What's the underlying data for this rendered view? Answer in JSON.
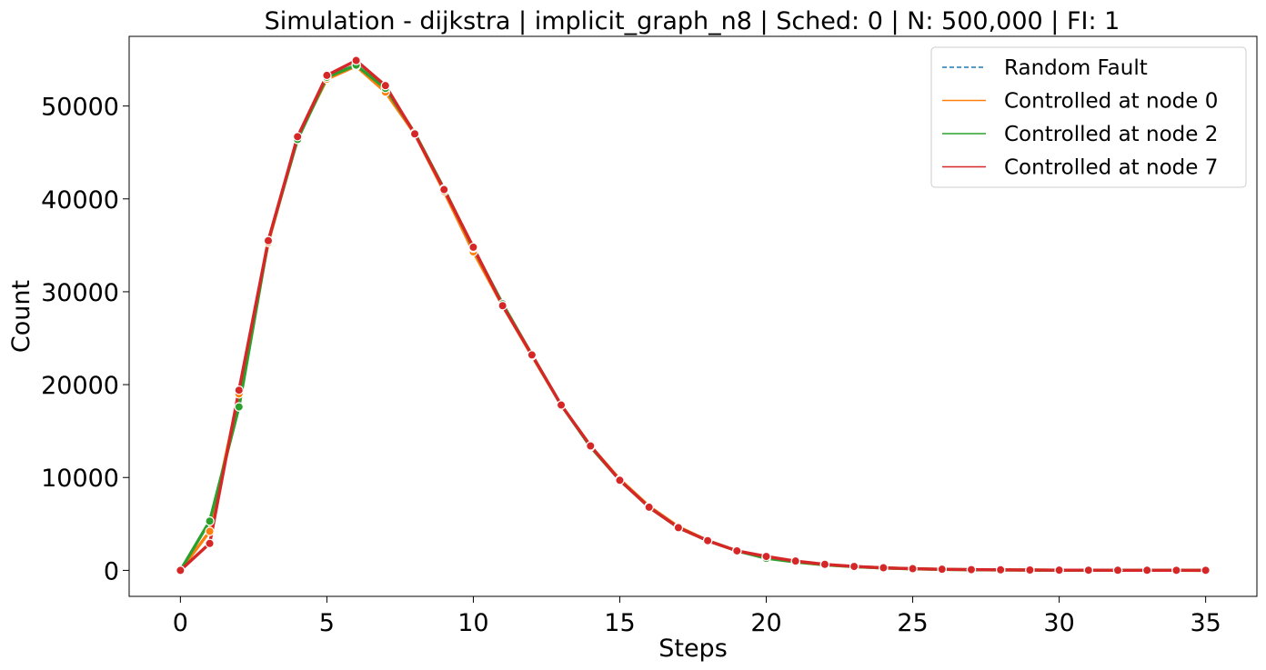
{
  "chart_data": {
    "type": "line",
    "title": "Simulation - dijkstra | implicit_graph_n8 | Sched: 0 | N: 500,000 | FI: 1",
    "xlabel": "Steps",
    "ylabel": "Count",
    "xlim": [
      -1.75,
      36.75
    ],
    "ylim": [
      -2800,
      57500
    ],
    "xticks": [
      0,
      5,
      10,
      15,
      20,
      25,
      30,
      35
    ],
    "yticks": [
      0,
      10000,
      20000,
      30000,
      40000,
      50000
    ],
    "grid": false,
    "legend_position": "top-right",
    "x": [
      0,
      1,
      2,
      3,
      4,
      5,
      6,
      7,
      8,
      9,
      10,
      11,
      12,
      13,
      14,
      15,
      16,
      17,
      18,
      19,
      20,
      21,
      22,
      23,
      24,
      25,
      26,
      27,
      28,
      29,
      30,
      31,
      32,
      33,
      34,
      35
    ],
    "series": [
      {
        "name": "Random Fault",
        "color": "#1f77b4",
        "style": "dashed",
        "values": [
          0,
          5300,
          17600,
          35500,
          46500,
          53200,
          54500,
          52000,
          47000,
          41000,
          34500,
          28600,
          23100,
          17800,
          13400,
          9700,
          6800,
          4600,
          3200,
          2100,
          1400,
          900,
          600,
          400,
          260,
          170,
          110,
          70,
          50,
          30,
          20,
          15,
          10,
          8,
          5,
          3
        ]
      },
      {
        "name": "Controlled at node 0",
        "color": "#ff7f0e",
        "style": "solid",
        "values": [
          0,
          4200,
          19000,
          35300,
          46600,
          52900,
          54300,
          51500,
          47000,
          40800,
          34300,
          28500,
          23100,
          17800,
          13400,
          9800,
          6900,
          4700,
          3200,
          2100,
          1400,
          900,
          600,
          400,
          260,
          170,
          110,
          70,
          50,
          30,
          20,
          15,
          10,
          8,
          5,
          3
        ]
      },
      {
        "name": "Controlled at node 2",
        "color": "#2ca02c",
        "style": "solid",
        "values": [
          0,
          5300,
          17600,
          35500,
          46400,
          53100,
          54400,
          51900,
          47100,
          41100,
          34700,
          28700,
          23200,
          17800,
          13300,
          9700,
          6800,
          4600,
          3200,
          2100,
          1300,
          900,
          600,
          400,
          260,
          170,
          110,
          70,
          50,
          30,
          20,
          15,
          10,
          8,
          5,
          3
        ]
      },
      {
        "name": "Controlled at node 7",
        "color": "#d62728",
        "style": "solid",
        "values": [
          0,
          2900,
          19400,
          35500,
          46700,
          53300,
          54900,
          52200,
          47000,
          41000,
          34800,
          28500,
          23200,
          17800,
          13400,
          9700,
          6800,
          4600,
          3200,
          2100,
          1500,
          1000,
          650,
          420,
          280,
          180,
          120,
          80,
          60,
          40,
          25,
          18,
          12,
          9,
          6,
          4
        ]
      }
    ]
  }
}
